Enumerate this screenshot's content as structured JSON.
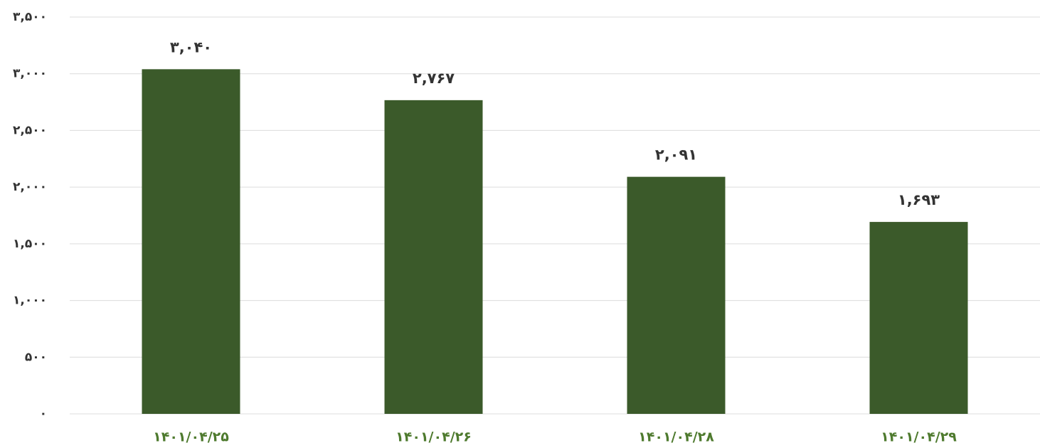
{
  "chart_data": {
    "type": "bar",
    "categories": [
      "۱۴۰۱/۰۴/۲۵",
      "۱۴۰۱/۰۴/۲۶",
      "۱۴۰۱/۰۴/۲۸",
      "۱۴۰۱/۰۴/۲۹"
    ],
    "values": [
      3040,
      2767,
      2091,
      1693
    ],
    "value_labels": [
      "۳,۰۴۰",
      "۲,۷۶۷",
      "۲,۰۹۱",
      "۱,۶۹۳"
    ],
    "color": "#3b5a2a",
    "ylim": [
      0,
      3500
    ],
    "yticks": [
      {
        "value": 0,
        "label": "۰"
      },
      {
        "value": 500,
        "label": "۵۰۰"
      },
      {
        "value": 1000,
        "label": "۱,۰۰۰"
      },
      {
        "value": 1500,
        "label": "۱,۵۰۰"
      },
      {
        "value": 2000,
        "label": "۲,۰۰۰"
      },
      {
        "value": 2500,
        "label": "۲,۵۰۰"
      },
      {
        "value": 3000,
        "label": "۳,۰۰۰"
      },
      {
        "value": 3500,
        "label": "۳,۵۰۰"
      }
    ],
    "grid": true
  }
}
